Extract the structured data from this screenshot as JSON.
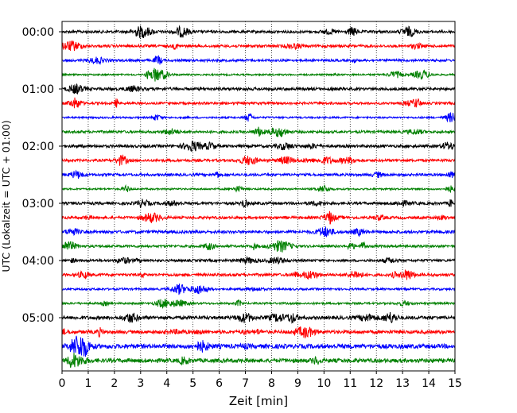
{
  "chart_data": {
    "type": "line",
    "xlabel": "Zeit  [min]",
    "ylabel": "UTC (Lokalzeit = UTC + 01:00)",
    "xlim": [
      0,
      15
    ],
    "x_ticks": [
      "0",
      "1",
      "2",
      "3",
      "4",
      "5",
      "6",
      "7",
      "8",
      "9",
      "10",
      "11",
      "12",
      "13",
      "14",
      "15"
    ],
    "y_ticks": [
      "00:00",
      "01:00",
      "02:00",
      "03:00",
      "04:00",
      "05:00"
    ],
    "grid": "vertical-dotted",
    "trace_interval_min": 15,
    "trace_count": 24,
    "colors": [
      "#000000",
      "#ff0000",
      "#0000ff",
      "#008000"
    ]
  }
}
